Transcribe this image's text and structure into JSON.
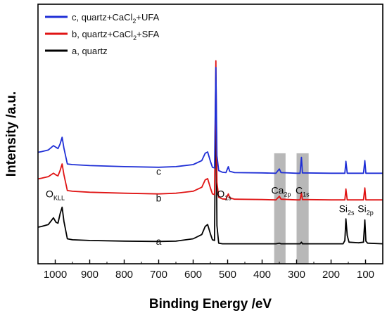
{
  "chart_data": {
    "type": "line",
    "xlabel": "Binding Energy /eV",
    "ylabel": "Intensity /a.u.",
    "xlim": [
      1050,
      50
    ],
    "x_reversed": true,
    "x_ticks": [
      1000,
      900,
      800,
      700,
      600,
      500,
      400,
      300,
      200,
      100
    ],
    "y_ticks_shown": false,
    "legend": {
      "placement": "top-left",
      "entries": [
        {
          "label": "c, quartz+CaCl",
          "sub": "2",
          "tail": "+UFA",
          "color": "#1f2fd6"
        },
        {
          "label": "b, quartz+CaCl",
          "sub": "2",
          "tail": "+SFA",
          "color": "#e01414"
        },
        {
          "label": "a, quartz",
          "sub": "",
          "tail": "",
          "color": "#000000"
        }
      ]
    },
    "highlight_bands": [
      {
        "from": 365,
        "to": 332,
        "color": "#b8b8b8"
      },
      {
        "from": 300,
        "to": 265,
        "color": "#b8b8b8"
      }
    ],
    "series": [
      {
        "label": "c",
        "color": "#1f2fd6",
        "offset": 2.1,
        "points": [
          [
            1050,
            0.65
          ],
          [
            1040,
            0.67
          ],
          [
            1020,
            0.72
          ],
          [
            1005,
            0.85
          ],
          [
            998,
            0.8
          ],
          [
            992,
            0.76
          ],
          [
            986,
            0.9
          ],
          [
            980,
            1.1
          ],
          [
            975,
            0.78
          ],
          [
            965,
            0.3
          ],
          [
            950,
            0.28
          ],
          [
            900,
            0.25
          ],
          [
            800,
            0.22
          ],
          [
            700,
            0.2
          ],
          [
            650,
            0.22
          ],
          [
            600,
            0.28
          ],
          [
            575,
            0.4
          ],
          [
            565,
            0.62
          ],
          [
            558,
            0.66
          ],
          [
            550,
            0.38
          ],
          [
            544,
            0.2
          ],
          [
            538,
            0.18
          ],
          [
            534,
            3.2
          ],
          [
            531,
            0.55
          ],
          [
            526,
            0.1
          ],
          [
            515,
            0.05
          ],
          [
            505,
            0.04
          ],
          [
            498,
            0.22
          ],
          [
            494,
            0.08
          ],
          [
            480,
            0.04
          ],
          [
            400,
            0.03
          ],
          [
            360,
            0.02
          ],
          [
            350,
            0.15
          ],
          [
            345,
            0.04
          ],
          [
            300,
            0.02
          ],
          [
            290,
            0.02
          ],
          [
            286,
            0.5
          ],
          [
            283,
            0.03
          ],
          [
            200,
            0.02
          ],
          [
            160,
            0.02
          ],
          [
            157,
            0.38
          ],
          [
            153,
            0.02
          ],
          [
            106,
            0.02
          ],
          [
            102,
            0.4
          ],
          [
            99,
            0.02
          ],
          [
            50,
            0.02
          ]
        ]
      },
      {
        "label": "b",
        "color": "#e01414",
        "offset": 1.3,
        "points": [
          [
            1050,
            0.65
          ],
          [
            1040,
            0.67
          ],
          [
            1020,
            0.72
          ],
          [
            1005,
            0.82
          ],
          [
            998,
            0.77
          ],
          [
            992,
            0.74
          ],
          [
            986,
            0.9
          ],
          [
            980,
            1.1
          ],
          [
            975,
            0.78
          ],
          [
            965,
            0.3
          ],
          [
            950,
            0.28
          ],
          [
            900,
            0.25
          ],
          [
            800,
            0.22
          ],
          [
            700,
            0.2
          ],
          [
            650,
            0.22
          ],
          [
            600,
            0.28
          ],
          [
            575,
            0.4
          ],
          [
            565,
            0.62
          ],
          [
            558,
            0.66
          ],
          [
            550,
            0.38
          ],
          [
            544,
            0.2
          ],
          [
            538,
            0.18
          ],
          [
            534,
            4.2
          ],
          [
            531,
            0.55
          ],
          [
            526,
            0.1
          ],
          [
            515,
            0.05
          ],
          [
            505,
            0.04
          ],
          [
            498,
            0.2
          ],
          [
            494,
            0.08
          ],
          [
            480,
            0.04
          ],
          [
            400,
            0.03
          ],
          [
            360,
            0.02
          ],
          [
            350,
            0.13
          ],
          [
            345,
            0.04
          ],
          [
            300,
            0.02
          ],
          [
            290,
            0.02
          ],
          [
            286,
            0.22
          ],
          [
            283,
            0.03
          ],
          [
            200,
            0.02
          ],
          [
            160,
            0.02
          ],
          [
            157,
            0.35
          ],
          [
            153,
            0.02
          ],
          [
            106,
            0.02
          ],
          [
            102,
            0.38
          ],
          [
            99,
            0.02
          ],
          [
            50,
            0.02
          ]
        ]
      },
      {
        "label": "a",
        "color": "#000000",
        "offset": 0.0,
        "points": [
          [
            1050,
            0.5
          ],
          [
            1040,
            0.52
          ],
          [
            1020,
            0.58
          ],
          [
            1005,
            0.78
          ],
          [
            998,
            0.65
          ],
          [
            992,
            0.62
          ],
          [
            986,
            0.9
          ],
          [
            980,
            1.1
          ],
          [
            975,
            0.68
          ],
          [
            965,
            0.15
          ],
          [
            950,
            0.12
          ],
          [
            900,
            0.1
          ],
          [
            800,
            0.08
          ],
          [
            700,
            0.07
          ],
          [
            650,
            0.08
          ],
          [
            600,
            0.15
          ],
          [
            575,
            0.28
          ],
          [
            565,
            0.52
          ],
          [
            558,
            0.58
          ],
          [
            550,
            0.3
          ],
          [
            544,
            0.12
          ],
          [
            538,
            0.1
          ],
          [
            534,
            5.0
          ],
          [
            531,
            0.55
          ],
          [
            526,
            0.02
          ],
          [
            515,
            0.0
          ],
          [
            505,
            0.0
          ],
          [
            480,
            0.0
          ],
          [
            400,
            0.0
          ],
          [
            360,
            0.0
          ],
          [
            350,
            0.02
          ],
          [
            345,
            0.0
          ],
          [
            300,
            0.0
          ],
          [
            290,
            0.0
          ],
          [
            286,
            0.05
          ],
          [
            283,
            0.0
          ],
          [
            200,
            0.0
          ],
          [
            165,
            0.0
          ],
          [
            160,
            0.1
          ],
          [
            157,
            0.75
          ],
          [
            153,
            0.25
          ],
          [
            148,
            0.05
          ],
          [
            120,
            0.03
          ],
          [
            106,
            0.05
          ],
          [
            102,
            0.72
          ],
          [
            99,
            0.08
          ],
          [
            94,
            0.02
          ],
          [
            50,
            0.0
          ]
        ]
      }
    ],
    "curve_labels": [
      {
        "text": "c",
        "x": 700,
        "y": 2.1
      },
      {
        "text": "b",
        "x": 700,
        "y": 1.3
      },
      {
        "text": "a",
        "x": 700,
        "y": 0.0
      }
    ],
    "peak_labels": [
      {
        "main": "O",
        "sub": "KLL",
        "x": 1000,
        "y": 1.4
      },
      {
        "main": "O",
        "sub": "1s",
        "x": 510,
        "y": 1.4
      },
      {
        "main": "Ca",
        "sub": "2p",
        "x": 345,
        "y": 1.5
      },
      {
        "main": "C",
        "sub": "1s",
        "x": 283,
        "y": 1.5
      },
      {
        "main": "Si",
        "sub": "2s",
        "x": 155,
        "y": 0.95
      },
      {
        "main": "Si",
        "sub": "2p",
        "x": 100,
        "y": 0.95
      }
    ]
  }
}
